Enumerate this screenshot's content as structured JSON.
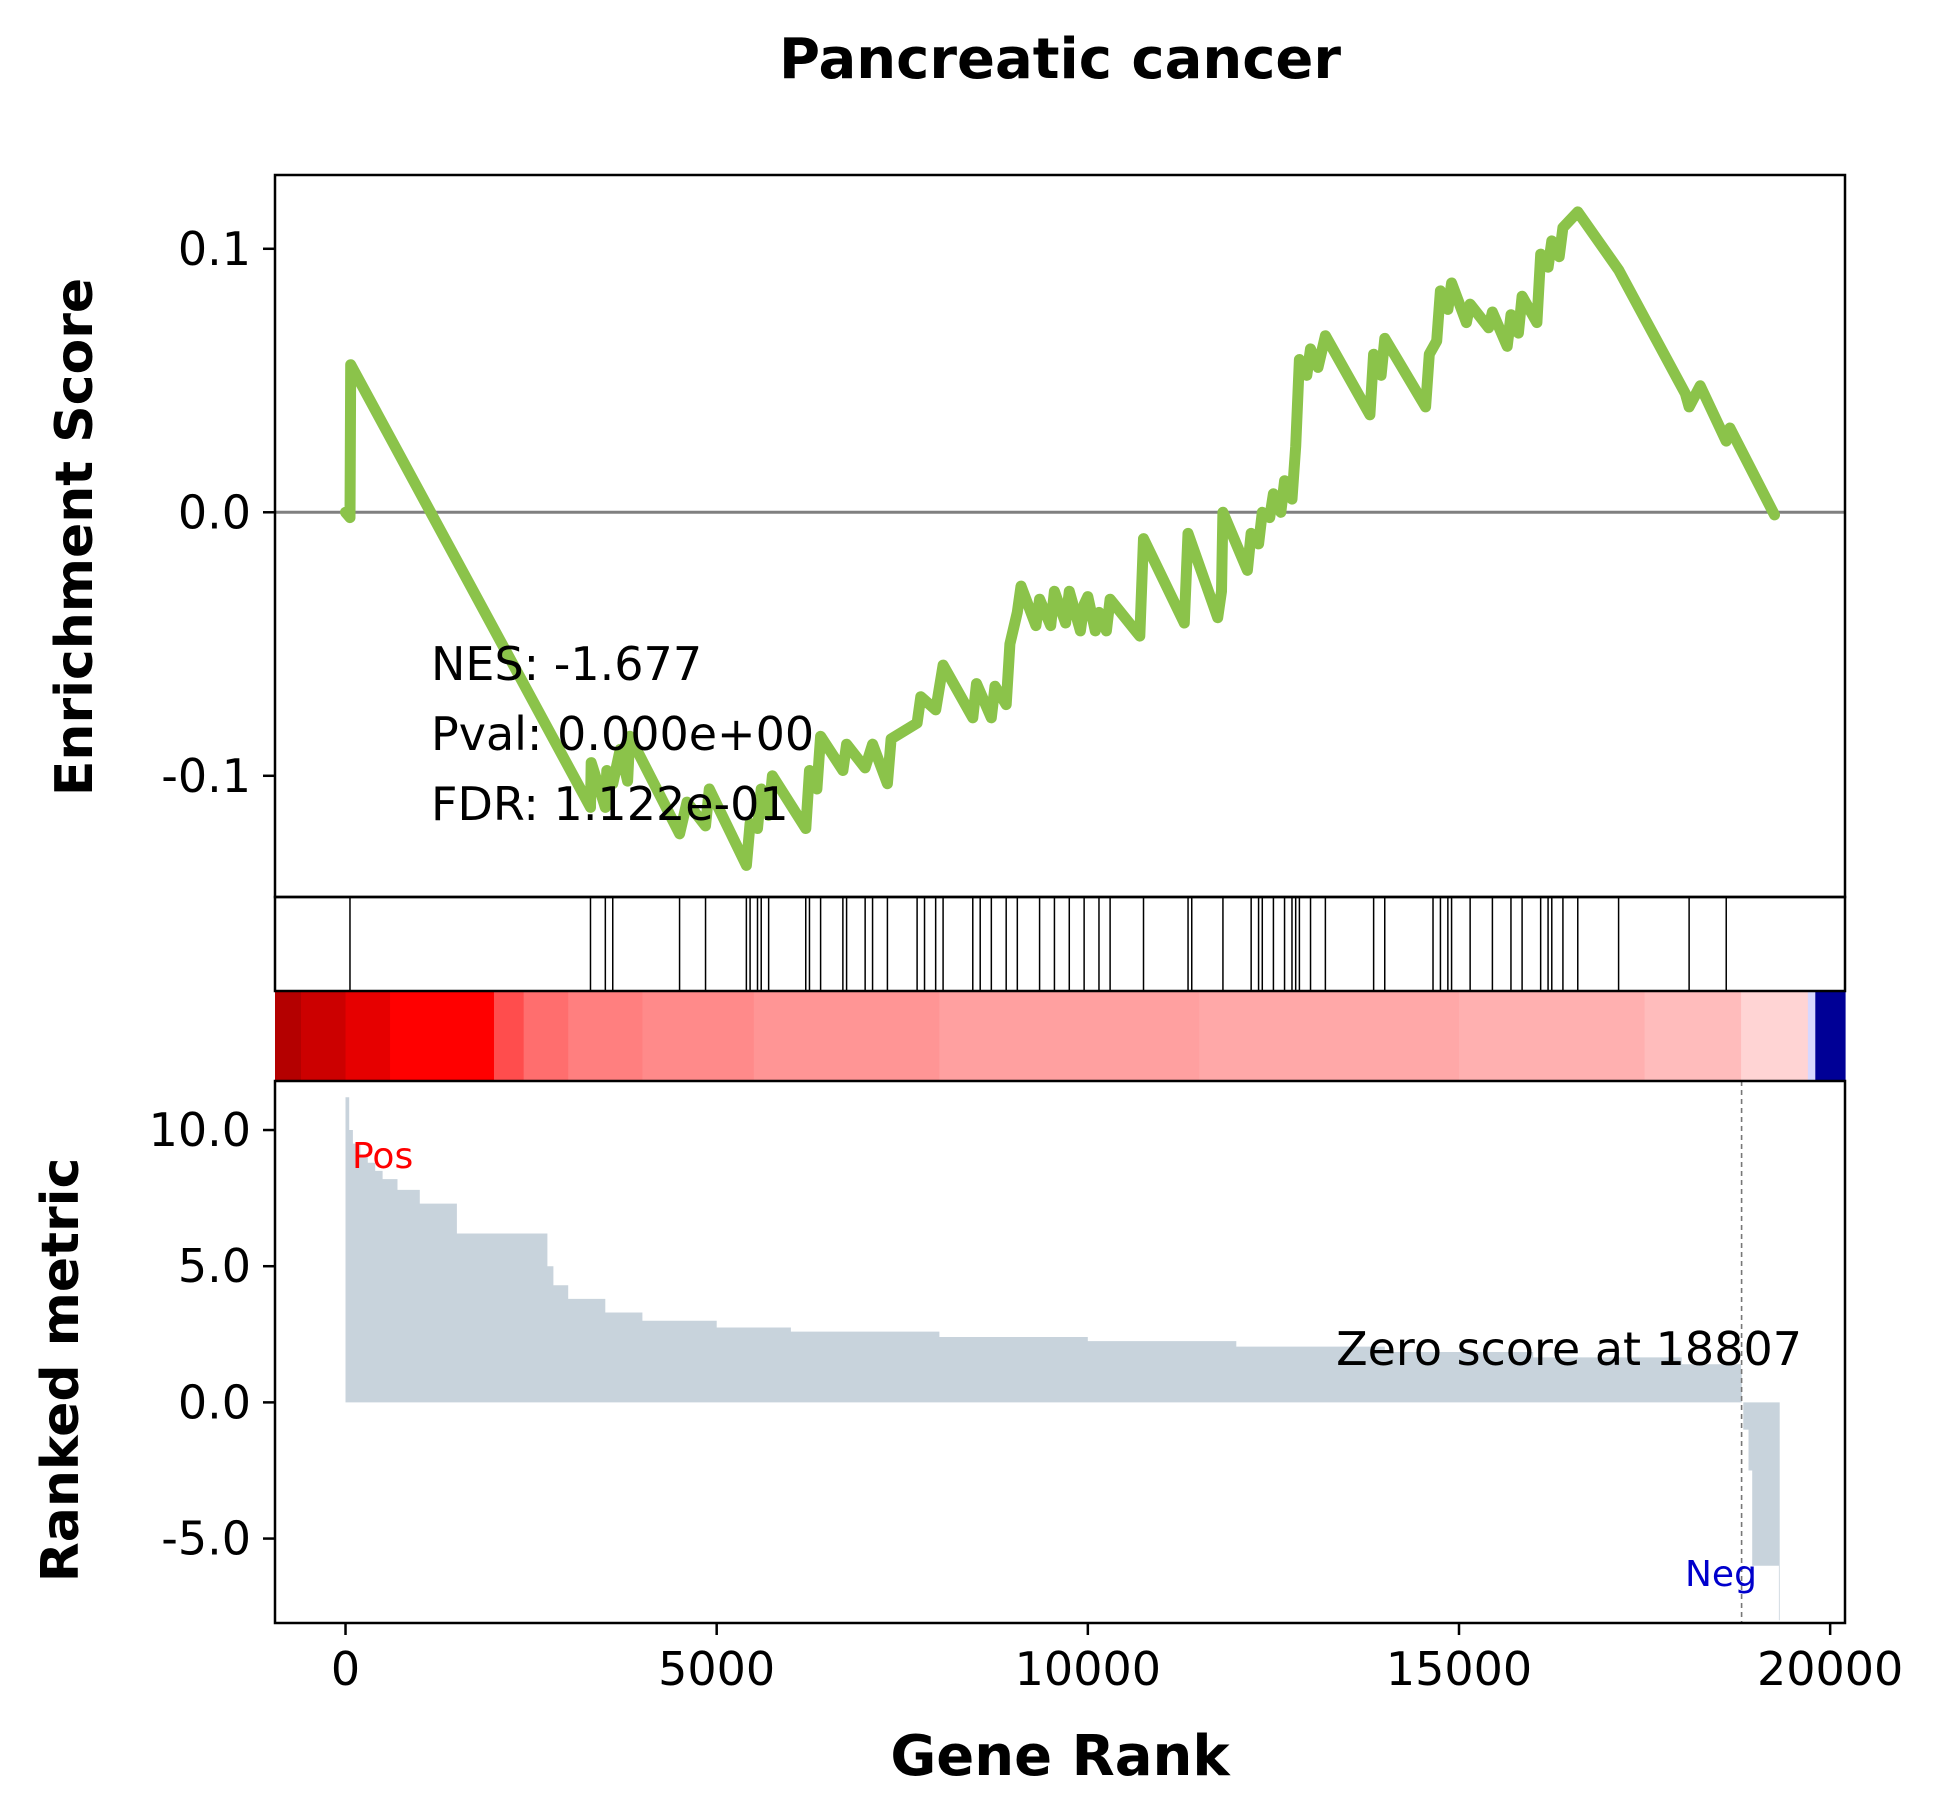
{
  "chart_data": {
    "type": "line",
    "title": "Pancreatic cancer",
    "xlabel": "Gene Rank",
    "xlim": [
      -950,
      20200
    ],
    "x_ticks": [
      {
        "v": 0,
        "label": "0"
      },
      {
        "v": 5000,
        "label": "5000"
      },
      {
        "v": 10000,
        "label": "10000"
      },
      {
        "v": 15000,
        "label": "15000"
      },
      {
        "v": 20000,
        "label": "20000"
      }
    ],
    "enrichment": {
      "ylabel": "Enrichment Score",
      "ylim": [
        -0.146,
        0.128
      ],
      "y_ticks": [
        {
          "v": 0.1,
          "label": "0.1"
        },
        {
          "v": 0.0,
          "label": "0.0"
        },
        {
          "v": -0.1,
          "label": "-0.1"
        }
      ],
      "line_color": "#8bc34a",
      "points": [
        [
          0,
          0.0
        ],
        [
          60,
          -0.002
        ],
        [
          70,
          0.056
        ],
        [
          3300,
          -0.112
        ],
        [
          3310,
          -0.095
        ],
        [
          3500,
          -0.112
        ],
        [
          3520,
          -0.098
        ],
        [
          3600,
          -0.103
        ],
        [
          3700,
          -0.09
        ],
        [
          3800,
          -0.102
        ],
        [
          3830,
          -0.085
        ],
        [
          4500,
          -0.122
        ],
        [
          4600,
          -0.11
        ],
        [
          4850,
          -0.119
        ],
        [
          4900,
          -0.105
        ],
        [
          5400,
          -0.134
        ],
        [
          5450,
          -0.118
        ],
        [
          5550,
          -0.12
        ],
        [
          5600,
          -0.105
        ],
        [
          5700,
          -0.115
        ],
        [
          5750,
          -0.1
        ],
        [
          6200,
          -0.12
        ],
        [
          6250,
          -0.098
        ],
        [
          6350,
          -0.105
        ],
        [
          6400,
          -0.085
        ],
        [
          6700,
          -0.098
        ],
        [
          6750,
          -0.088
        ],
        [
          7000,
          -0.097
        ],
        [
          7100,
          -0.088
        ],
        [
          7300,
          -0.103
        ],
        [
          7350,
          -0.086
        ],
        [
          7700,
          -0.08
        ],
        [
          7750,
          -0.07
        ],
        [
          7950,
          -0.075
        ],
        [
          8050,
          -0.058
        ],
        [
          8450,
          -0.078
        ],
        [
          8500,
          -0.065
        ],
        [
          8700,
          -0.078
        ],
        [
          8750,
          -0.066
        ],
        [
          8900,
          -0.073
        ],
        [
          8950,
          -0.05
        ],
        [
          9050,
          -0.038
        ],
        [
          9100,
          -0.028
        ],
        [
          9300,
          -0.043
        ],
        [
          9350,
          -0.033
        ],
        [
          9500,
          -0.043
        ],
        [
          9550,
          -0.03
        ],
        [
          9700,
          -0.042
        ],
        [
          9750,
          -0.03
        ],
        [
          9900,
          -0.045
        ],
        [
          9950,
          -0.035
        ],
        [
          10000,
          -0.032
        ],
        [
          10100,
          -0.045
        ],
        [
          10150,
          -0.038
        ],
        [
          10250,
          -0.045
        ],
        [
          10300,
          -0.033
        ],
        [
          10700,
          -0.047
        ],
        [
          10750,
          -0.01
        ],
        [
          11300,
          -0.042
        ],
        [
          11350,
          -0.008
        ],
        [
          11750,
          -0.04
        ],
        [
          11800,
          -0.03
        ],
        [
          11820,
          0.0
        ],
        [
          12150,
          -0.022
        ],
        [
          12200,
          -0.008
        ],
        [
          12300,
          -0.012
        ],
        [
          12350,
          0.0
        ],
        [
          12450,
          -0.002
        ],
        [
          12500,
          0.007
        ],
        [
          12600,
          0.0
        ],
        [
          12650,
          0.012
        ],
        [
          12750,
          0.005
        ],
        [
          12800,
          0.025
        ],
        [
          12850,
          0.058
        ],
        [
          12950,
          0.052
        ],
        [
          13000,
          0.062
        ],
        [
          13100,
          0.055
        ],
        [
          13200,
          0.067
        ],
        [
          13800,
          0.037
        ],
        [
          13850,
          0.06
        ],
        [
          13950,
          0.052
        ],
        [
          14000,
          0.066
        ],
        [
          14550,
          0.04
        ],
        [
          14600,
          0.06
        ],
        [
          14700,
          0.065
        ],
        [
          14750,
          0.084
        ],
        [
          14850,
          0.077
        ],
        [
          14900,
          0.087
        ],
        [
          15100,
          0.072
        ],
        [
          15150,
          0.079
        ],
        [
          15400,
          0.07
        ],
        [
          15450,
          0.076
        ],
        [
          15650,
          0.063
        ],
        [
          15700,
          0.075
        ],
        [
          15800,
          0.068
        ],
        [
          15850,
          0.082
        ],
        [
          16050,
          0.072
        ],
        [
          16100,
          0.098
        ],
        [
          16200,
          0.093
        ],
        [
          16250,
          0.103
        ],
        [
          16350,
          0.097
        ],
        [
          16400,
          0.108
        ],
        [
          16600,
          0.114
        ],
        [
          17150,
          0.092
        ],
        [
          18050,
          0.045
        ],
        [
          18100,
          0.04
        ],
        [
          18250,
          0.048
        ],
        [
          18600,
          0.027
        ],
        [
          18650,
          0.032
        ],
        [
          19250,
          -0.001
        ]
      ]
    },
    "hits": [
      60,
      3300,
      3500,
      3600,
      4500,
      4850,
      5400,
      5450,
      5550,
      5600,
      5700,
      6200,
      6250,
      6400,
      6700,
      6750,
      7000,
      7100,
      7300,
      7700,
      7800,
      7950,
      8050,
      8450,
      8550,
      8700,
      8900,
      9050,
      9350,
      9550,
      9750,
      9950,
      10150,
      10300,
      10750,
      11350,
      11400,
      11820,
      12200,
      12300,
      12350,
      12500,
      12650,
      12750,
      12800,
      12850,
      13000,
      13200,
      13850,
      14000,
      14650,
      14750,
      14850,
      14900,
      15150,
      15450,
      15700,
      15850,
      16100,
      16200,
      16250,
      16400,
      16600,
      17150,
      18100,
      18600
    ],
    "stats": {
      "nes": "NES: -1.677",
      "pval": "Pval: 0.000e+00",
      "fdr": "FDR: 1.122e-01"
    },
    "ranked": {
      "ylabel": "Ranked metric",
      "ylim": [
        -8.1,
        11.8
      ],
      "y_ticks": [
        {
          "v": 10,
          "label": "10.0"
        },
        {
          "v": 5,
          "label": "5.0"
        },
        {
          "v": 0,
          "label": "0.0"
        },
        {
          "v": -5,
          "label": "-5.0"
        }
      ],
      "fill_color": "#c8d3dc",
      "profile": [
        [
          0,
          11.2
        ],
        [
          50,
          10.0
        ],
        [
          100,
          9.5
        ],
        [
          200,
          9.1
        ],
        [
          300,
          8.8
        ],
        [
          400,
          8.5
        ],
        [
          500,
          8.2
        ],
        [
          700,
          7.8
        ],
        [
          1000,
          7.3
        ],
        [
          1500,
          6.2
        ],
        [
          2700,
          6.2
        ],
        [
          2720,
          5.0
        ],
        [
          2800,
          4.3
        ],
        [
          3000,
          3.8
        ],
        [
          3500,
          3.3
        ],
        [
          4000,
          3.0
        ],
        [
          5000,
          2.75
        ],
        [
          6000,
          2.6
        ],
        [
          8000,
          2.4
        ],
        [
          10000,
          2.25
        ],
        [
          12000,
          2.05
        ],
        [
          14000,
          1.85
        ],
        [
          16000,
          1.65
        ],
        [
          18000,
          1.4
        ],
        [
          18800,
          1.2
        ],
        [
          18810,
          0
        ],
        [
          18830,
          -1.0
        ],
        [
          18900,
          -2.5
        ],
        [
          18950,
          -6.0
        ],
        [
          19300,
          -6.0
        ],
        [
          19310,
          -8.0
        ]
      ],
      "zero_score_x": 18807,
      "zero_score_label": "Zero score at 18807",
      "pos_label": "Pos",
      "neg_label": "Neg",
      "pos_color": "#ff0000",
      "neg_color": "#0000cc"
    },
    "heatbar": {
      "segments": [
        {
          "x0": -950,
          "x1": -600,
          "color": "#b40000"
        },
        {
          "x0": -600,
          "x1": 0,
          "color": "#cc0000"
        },
        {
          "x0": 0,
          "x1": 600,
          "color": "#e60000"
        },
        {
          "x0": 600,
          "x1": 2000,
          "color": "#ff0000"
        },
        {
          "x0": 2000,
          "x1": 2400,
          "color": "#ff4d4d"
        },
        {
          "x0": 2400,
          "x1": 3000,
          "color": "#ff6e6e"
        },
        {
          "x0": 3000,
          "x1": 4000,
          "color": "#ff7f7f"
        },
        {
          "x0": 4000,
          "x1": 5500,
          "color": "#ff8a8a"
        },
        {
          "x0": 5500,
          "x1": 8000,
          "color": "#ff9595"
        },
        {
          "x0": 8000,
          "x1": 11500,
          "color": "#ffa0a0"
        },
        {
          "x0": 11500,
          "x1": 15000,
          "color": "#ffa8a8"
        },
        {
          "x0": 15000,
          "x1": 17500,
          "color": "#ffb0b0"
        },
        {
          "x0": 17500,
          "x1": 18800,
          "color": "#ffbcbc"
        },
        {
          "x0": 18800,
          "x1": 19700,
          "color": "#ffd4d4"
        },
        {
          "x0": 19700,
          "x1": 19800,
          "color": "#d8d8ff"
        },
        {
          "x0": 19800,
          "x1": 20200,
          "color": "#000096"
        }
      ]
    }
  }
}
